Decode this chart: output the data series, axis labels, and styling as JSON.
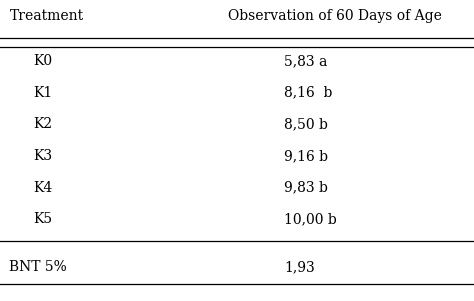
{
  "col_header": [
    "Treatment",
    "Observation of 60 Days of Age"
  ],
  "rows": [
    [
      "K0",
      "5,83 a"
    ],
    [
      "K1",
      "8,16  b"
    ],
    [
      "K2",
      "8,50 b"
    ],
    [
      "K3",
      "9,16 b"
    ],
    [
      "K4",
      "9,83 b"
    ],
    [
      "K5",
      "10,00 b"
    ]
  ],
  "footer": [
    "BNT 5%",
    "1,93"
  ],
  "bg_color": "#ffffff",
  "text_color": "#000000",
  "header_fontsize": 10.0,
  "body_fontsize": 10.0,
  "footer_fontsize": 10.0
}
